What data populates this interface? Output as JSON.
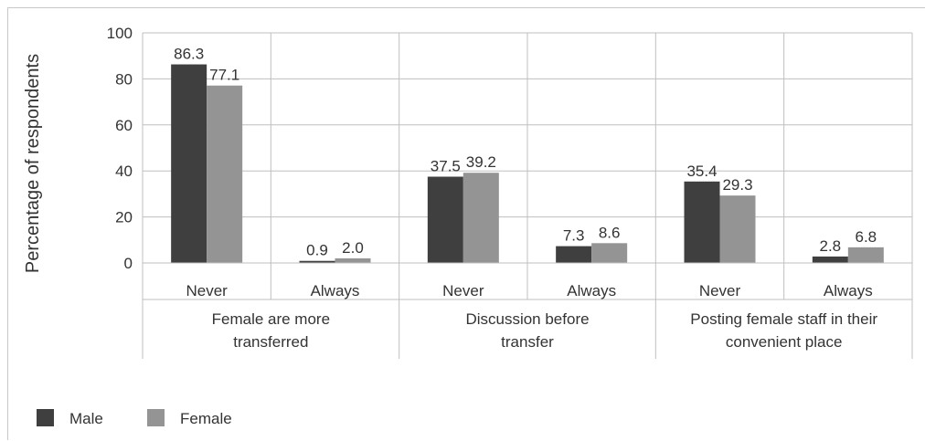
{
  "chart_data": {
    "type": "bar",
    "title": "",
    "ylabel": "Percentage of respondents",
    "xlabel": "",
    "ylim": [
      0,
      100
    ],
    "yticks": [
      0,
      20,
      40,
      60,
      80,
      100
    ],
    "grid": true,
    "legend_position": "bottom-left",
    "groups": [
      {
        "label_lines": [
          "Female are more",
          "transferred"
        ],
        "categories": [
          "Never",
          "Always"
        ]
      },
      {
        "label_lines": [
          "Discussion before",
          "transfer"
        ],
        "categories": [
          "Never",
          "Always"
        ]
      },
      {
        "label_lines": [
          "Posting female staff in their",
          "convenient place"
        ],
        "categories": [
          "Never",
          "Always"
        ]
      }
    ],
    "categories": [
      "Never",
      "Always",
      "Never",
      "Always",
      "Never",
      "Always"
    ],
    "series": [
      {
        "name": "Male",
        "color": "#3f3f3f",
        "values": [
          86.3,
          0.9,
          37.5,
          7.3,
          35.4,
          2.8
        ],
        "labels": [
          "86.3",
          "0.9",
          "37.5",
          "7.3",
          "35.4",
          "2.8"
        ]
      },
      {
        "name": "Female",
        "color": "#949494",
        "values": [
          77.1,
          2.0,
          39.2,
          8.6,
          29.3,
          6.8
        ],
        "labels": [
          "77.1",
          "2.0",
          "39.2",
          "8.6",
          "29.3",
          "6.8"
        ]
      }
    ]
  }
}
